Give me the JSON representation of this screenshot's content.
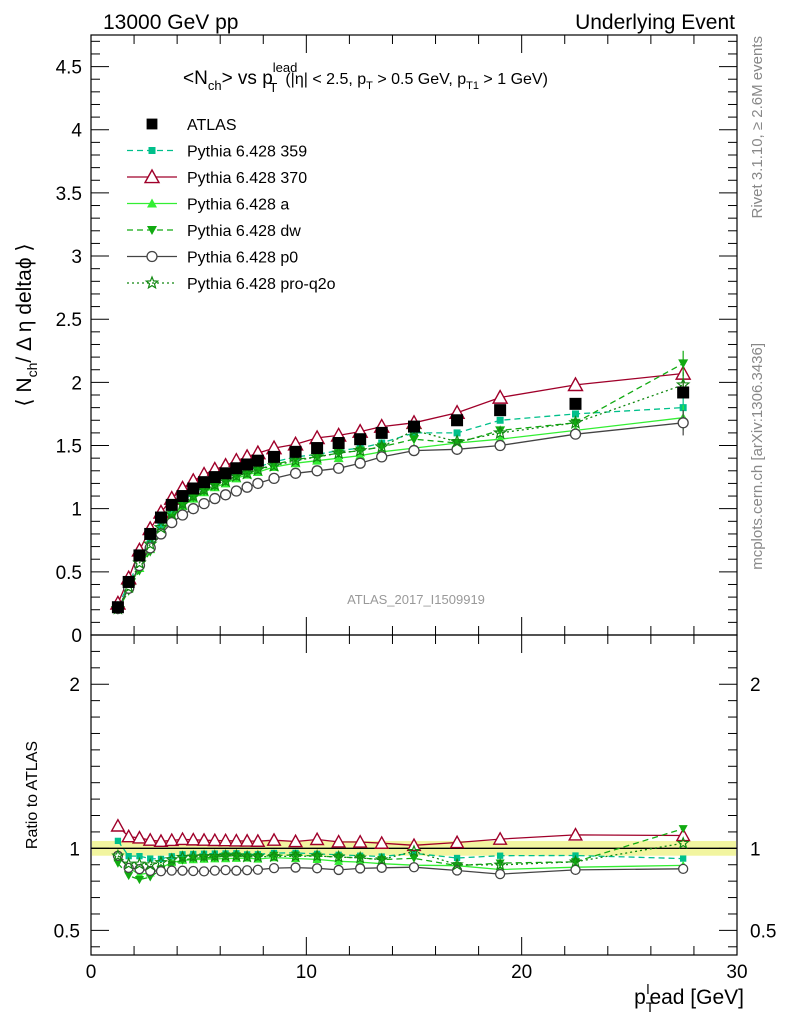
{
  "header": {
    "left": "13000 GeV pp",
    "right": "Underlying Event"
  },
  "side_labels": {
    "rivet": "Rivet 3.1.10, ≥ 2.6M events",
    "mcplots": "mcplots.cern.ch [arXiv:1306.3436]"
  },
  "watermark": "ATLAS_2017_I1509919",
  "title": {
    "main": "<N",
    "ch_sub": "ch",
    "vs": "> vs p",
    "lead_sup": "lead",
    "T_sub": "T",
    "cuts_1": "(|η| < 2.5, p",
    "cuts_T": "T",
    "cuts_2": " > 0.5 GeV, p",
    "cuts_T1": "T1",
    "cuts_3": " > 1 GeV)"
  },
  "ylabel_top": {
    "pre": "⟨ N",
    "sub": "ch",
    "post": "/ Δ η deltaϕ ⟩"
  },
  "ylabel_ratio": "Ratio to ATLAS",
  "xlabel": {
    "p": "p",
    "T": "T",
    "l": "l",
    "rest": "ead [GeV]"
  },
  "chart_data": {
    "type": "scatter",
    "xlim": [
      0,
      30
    ],
    "ylim": [
      0,
      4.75
    ],
    "ratio_ylim": [
      0.35,
      2.3
    ],
    "x_ticks": [
      "0",
      "10",
      "20",
      "30"
    ],
    "y_ticks": [
      "0",
      "0.5",
      "1",
      "1.5",
      "2",
      "2.5",
      "3",
      "3.5",
      "4",
      "4.5"
    ],
    "ratio_ticks": [
      "0.5",
      "1",
      "2"
    ],
    "x": [
      1.25,
      1.75,
      2.25,
      2.75,
      3.25,
      3.75,
      4.25,
      4.75,
      5.25,
      5.75,
      6.25,
      6.75,
      7.25,
      7.75,
      8.5,
      9.5,
      10.5,
      11.5,
      12.5,
      13.5,
      15.0,
      17.0,
      19.0,
      22.5,
      27.5
    ],
    "data": {
      "name": "ATLAS",
      "values": [
        0.22,
        0.42,
        0.63,
        0.8,
        0.93,
        1.03,
        1.1,
        1.16,
        1.21,
        1.25,
        1.28,
        1.32,
        1.35,
        1.38,
        1.41,
        1.45,
        1.48,
        1.52,
        1.55,
        1.6,
        1.65,
        1.7,
        1.78,
        1.83,
        1.92
      ]
    },
    "series": [
      {
        "name": "Pythia 6.428 359",
        "color": "#00c08b",
        "marker": "square-small",
        "dash": "dashed",
        "values": [
          0.23,
          0.4,
          0.6,
          0.75,
          0.87,
          0.98,
          1.06,
          1.12,
          1.17,
          1.21,
          1.24,
          1.28,
          1.3,
          1.33,
          1.37,
          1.41,
          1.43,
          1.46,
          1.48,
          1.52,
          1.6,
          1.6,
          1.7,
          1.75,
          1.8
        ]
      },
      {
        "name": "Pythia 6.428 370",
        "color": "#a0002a",
        "marker": "triangle-open",
        "dash": "solid",
        "values": [
          0.25,
          0.45,
          0.67,
          0.84,
          0.97,
          1.08,
          1.16,
          1.22,
          1.27,
          1.31,
          1.34,
          1.38,
          1.41,
          1.44,
          1.48,
          1.51,
          1.56,
          1.58,
          1.61,
          1.65,
          1.68,
          1.76,
          1.88,
          1.98,
          2.07
        ]
      },
      {
        "name": "Pythia 6.428 a",
        "color": "#33ee33",
        "marker": "triangle-filled",
        "dash": "solid",
        "values": [
          0.21,
          0.37,
          0.53,
          0.68,
          0.82,
          0.94,
          1.02,
          1.08,
          1.13,
          1.17,
          1.2,
          1.24,
          1.27,
          1.29,
          1.33,
          1.36,
          1.38,
          1.4,
          1.42,
          1.45,
          1.48,
          1.52,
          1.55,
          1.62,
          1.72
        ]
      },
      {
        "name": "Pythia 6.428 dw",
        "color": "#11aa11",
        "marker": "triangle-down-filled",
        "dash": "dashed",
        "values": [
          0.2,
          0.35,
          0.51,
          0.66,
          0.81,
          0.93,
          1.02,
          1.09,
          1.14,
          1.18,
          1.22,
          1.26,
          1.28,
          1.31,
          1.35,
          1.39,
          1.41,
          1.44,
          1.46,
          1.49,
          1.55,
          1.52,
          1.62,
          1.68,
          2.15
        ]
      },
      {
        "name": "Pythia 6.428 p0",
        "color": "#444444",
        "marker": "circle-open",
        "dash": "solid",
        "values": [
          0.21,
          0.37,
          0.55,
          0.69,
          0.8,
          0.89,
          0.95,
          1.0,
          1.04,
          1.08,
          1.11,
          1.14,
          1.17,
          1.2,
          1.24,
          1.28,
          1.3,
          1.32,
          1.36,
          1.41,
          1.46,
          1.47,
          1.5,
          1.59,
          1.68
        ]
      },
      {
        "name": "Pythia 6.428 pro-q2o",
        "color": "#118811",
        "marker": "star-open",
        "dash": "dotted",
        "values": [
          0.21,
          0.38,
          0.57,
          0.72,
          0.85,
          0.96,
          1.04,
          1.1,
          1.15,
          1.19,
          1.22,
          1.26,
          1.28,
          1.31,
          1.34,
          1.38,
          1.41,
          1.44,
          1.46,
          1.49,
          1.62,
          1.53,
          1.6,
          1.68,
          1.98
        ]
      }
    ]
  }
}
